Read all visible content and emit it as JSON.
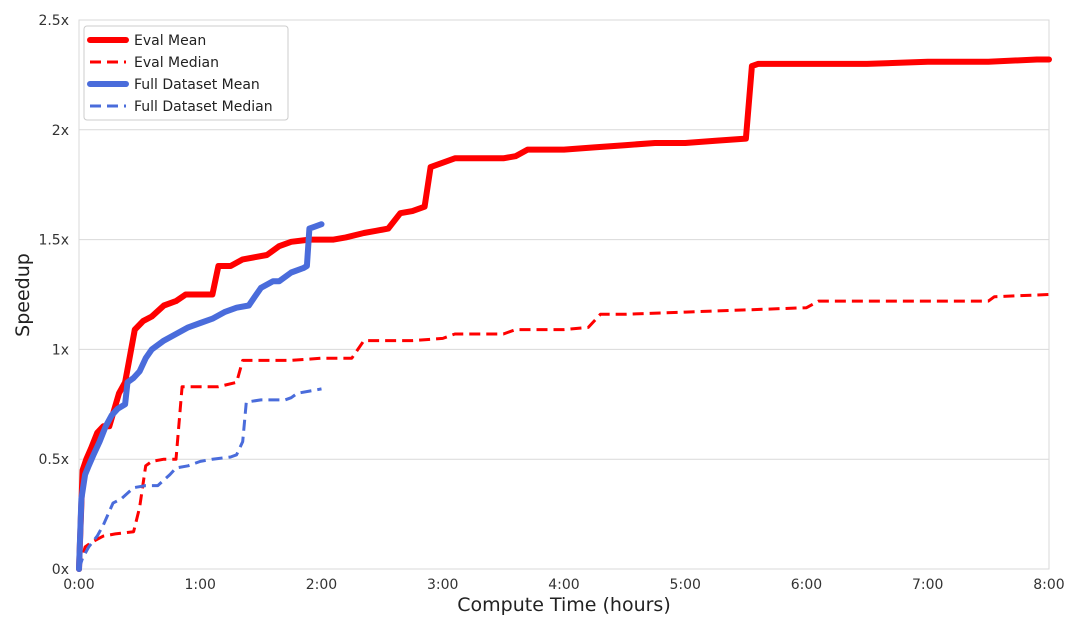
{
  "chart_data": {
    "type": "line",
    "title": "",
    "xlabel": "Compute Time (hours)",
    "ylabel": "Speedup",
    "xlim": [
      0,
      8
    ],
    "ylim": [
      0,
      2.5
    ],
    "x_ticks": [
      0,
      1,
      2,
      3,
      4,
      5,
      6,
      7,
      8
    ],
    "x_tick_labels": [
      "0:00",
      "1:00",
      "2:00",
      "3:00",
      "4:00",
      "5:00",
      "6:00",
      "7:00",
      "8:00"
    ],
    "y_ticks": [
      0,
      0.5,
      1,
      1.5,
      2,
      2.5
    ],
    "y_tick_labels": [
      "0x",
      "0.5x",
      "1x",
      "1.5x",
      "2x",
      "2.5x"
    ],
    "grid": "horizontal",
    "legend_position": "top-left",
    "series": [
      {
        "name": "Eval Mean",
        "color": "#ff0000",
        "style": "solid",
        "x": [
          0,
          0.03,
          0.06,
          0.1,
          0.15,
          0.2,
          0.25,
          0.33,
          0.38,
          0.46,
          0.53,
          0.6,
          0.7,
          0.8,
          0.88,
          0.95,
          1.1,
          1.15,
          1.25,
          1.35,
          1.45,
          1.55,
          1.65,
          1.75,
          1.9,
          2.1,
          2.2,
          2.35,
          2.45,
          2.55,
          2.65,
          2.75,
          2.85,
          2.9,
          3.0,
          3.1,
          3.3,
          3.5,
          3.6,
          3.7,
          4.0,
          4.25,
          4.5,
          4.75,
          5.0,
          5.25,
          5.5,
          5.55,
          5.6,
          6.0,
          6.5,
          7.0,
          7.5,
          7.9,
          8.0
        ],
        "y": [
          0,
          0.45,
          0.5,
          0.55,
          0.62,
          0.65,
          0.65,
          0.8,
          0.85,
          1.09,
          1.13,
          1.15,
          1.2,
          1.22,
          1.25,
          1.25,
          1.25,
          1.38,
          1.38,
          1.41,
          1.42,
          1.43,
          1.47,
          1.49,
          1.5,
          1.5,
          1.51,
          1.53,
          1.54,
          1.55,
          1.62,
          1.63,
          1.65,
          1.83,
          1.85,
          1.87,
          1.87,
          1.87,
          1.88,
          1.91,
          1.91,
          1.92,
          1.93,
          1.94,
          1.94,
          1.95,
          1.96,
          2.29,
          2.3,
          2.3,
          2.3,
          2.31,
          2.31,
          2.32,
          2.32
        ]
      },
      {
        "name": "Eval Median",
        "color": "#ff0000",
        "style": "dashed",
        "x": [
          0,
          0.05,
          0.1,
          0.2,
          0.3,
          0.45,
          0.5,
          0.55,
          0.6,
          0.7,
          0.8,
          0.85,
          0.9,
          1.0,
          1.15,
          1.3,
          1.35,
          1.5,
          1.75,
          2.0,
          2.25,
          2.35,
          2.5,
          2.75,
          3.0,
          3.1,
          3.5,
          3.6,
          3.8,
          4.0,
          4.2,
          4.3,
          4.5,
          5.0,
          5.5,
          6.0,
          6.1,
          6.5,
          7.0,
          7.5,
          7.55,
          8.0
        ],
        "y": [
          0,
          0.1,
          0.12,
          0.15,
          0.16,
          0.17,
          0.28,
          0.47,
          0.49,
          0.5,
          0.5,
          0.83,
          0.83,
          0.83,
          0.83,
          0.85,
          0.95,
          0.95,
          0.95,
          0.96,
          0.96,
          1.04,
          1.04,
          1.04,
          1.05,
          1.07,
          1.07,
          1.09,
          1.09,
          1.09,
          1.1,
          1.16,
          1.16,
          1.17,
          1.18,
          1.19,
          1.22,
          1.22,
          1.22,
          1.22,
          1.24,
          1.25
        ]
      },
      {
        "name": "Full Dataset Mean",
        "color": "#4a6cdb",
        "style": "solid",
        "x": [
          0,
          0.02,
          0.05,
          0.08,
          0.12,
          0.17,
          0.22,
          0.27,
          0.32,
          0.38,
          0.4,
          0.45,
          0.5,
          0.55,
          0.6,
          0.7,
          0.8,
          0.9,
          1.0,
          1.1,
          1.2,
          1.3,
          1.4,
          1.45,
          1.5,
          1.6,
          1.65,
          1.75,
          1.85,
          1.88,
          1.9,
          1.95,
          2.0
        ],
        "y": [
          0,
          0.32,
          0.43,
          0.47,
          0.52,
          0.58,
          0.65,
          0.7,
          0.73,
          0.75,
          0.85,
          0.87,
          0.9,
          0.96,
          1.0,
          1.04,
          1.07,
          1.1,
          1.12,
          1.14,
          1.17,
          1.19,
          1.2,
          1.24,
          1.28,
          1.31,
          1.31,
          1.35,
          1.37,
          1.38,
          1.55,
          1.56,
          1.57
        ]
      },
      {
        "name": "Full Dataset Median",
        "color": "#4a6cdb",
        "style": "dashed",
        "x": [
          0,
          0.03,
          0.08,
          0.15,
          0.2,
          0.28,
          0.35,
          0.45,
          0.55,
          0.65,
          0.75,
          0.8,
          0.9,
          1.0,
          1.1,
          1.25,
          1.3,
          1.35,
          1.38,
          1.5,
          1.7,
          1.75,
          1.8,
          1.9,
          2.0
        ],
        "y": [
          0,
          0.05,
          0.1,
          0.15,
          0.2,
          0.3,
          0.32,
          0.37,
          0.38,
          0.38,
          0.43,
          0.46,
          0.47,
          0.49,
          0.5,
          0.51,
          0.52,
          0.58,
          0.76,
          0.77,
          0.77,
          0.78,
          0.8,
          0.81,
          0.82
        ]
      }
    ]
  }
}
